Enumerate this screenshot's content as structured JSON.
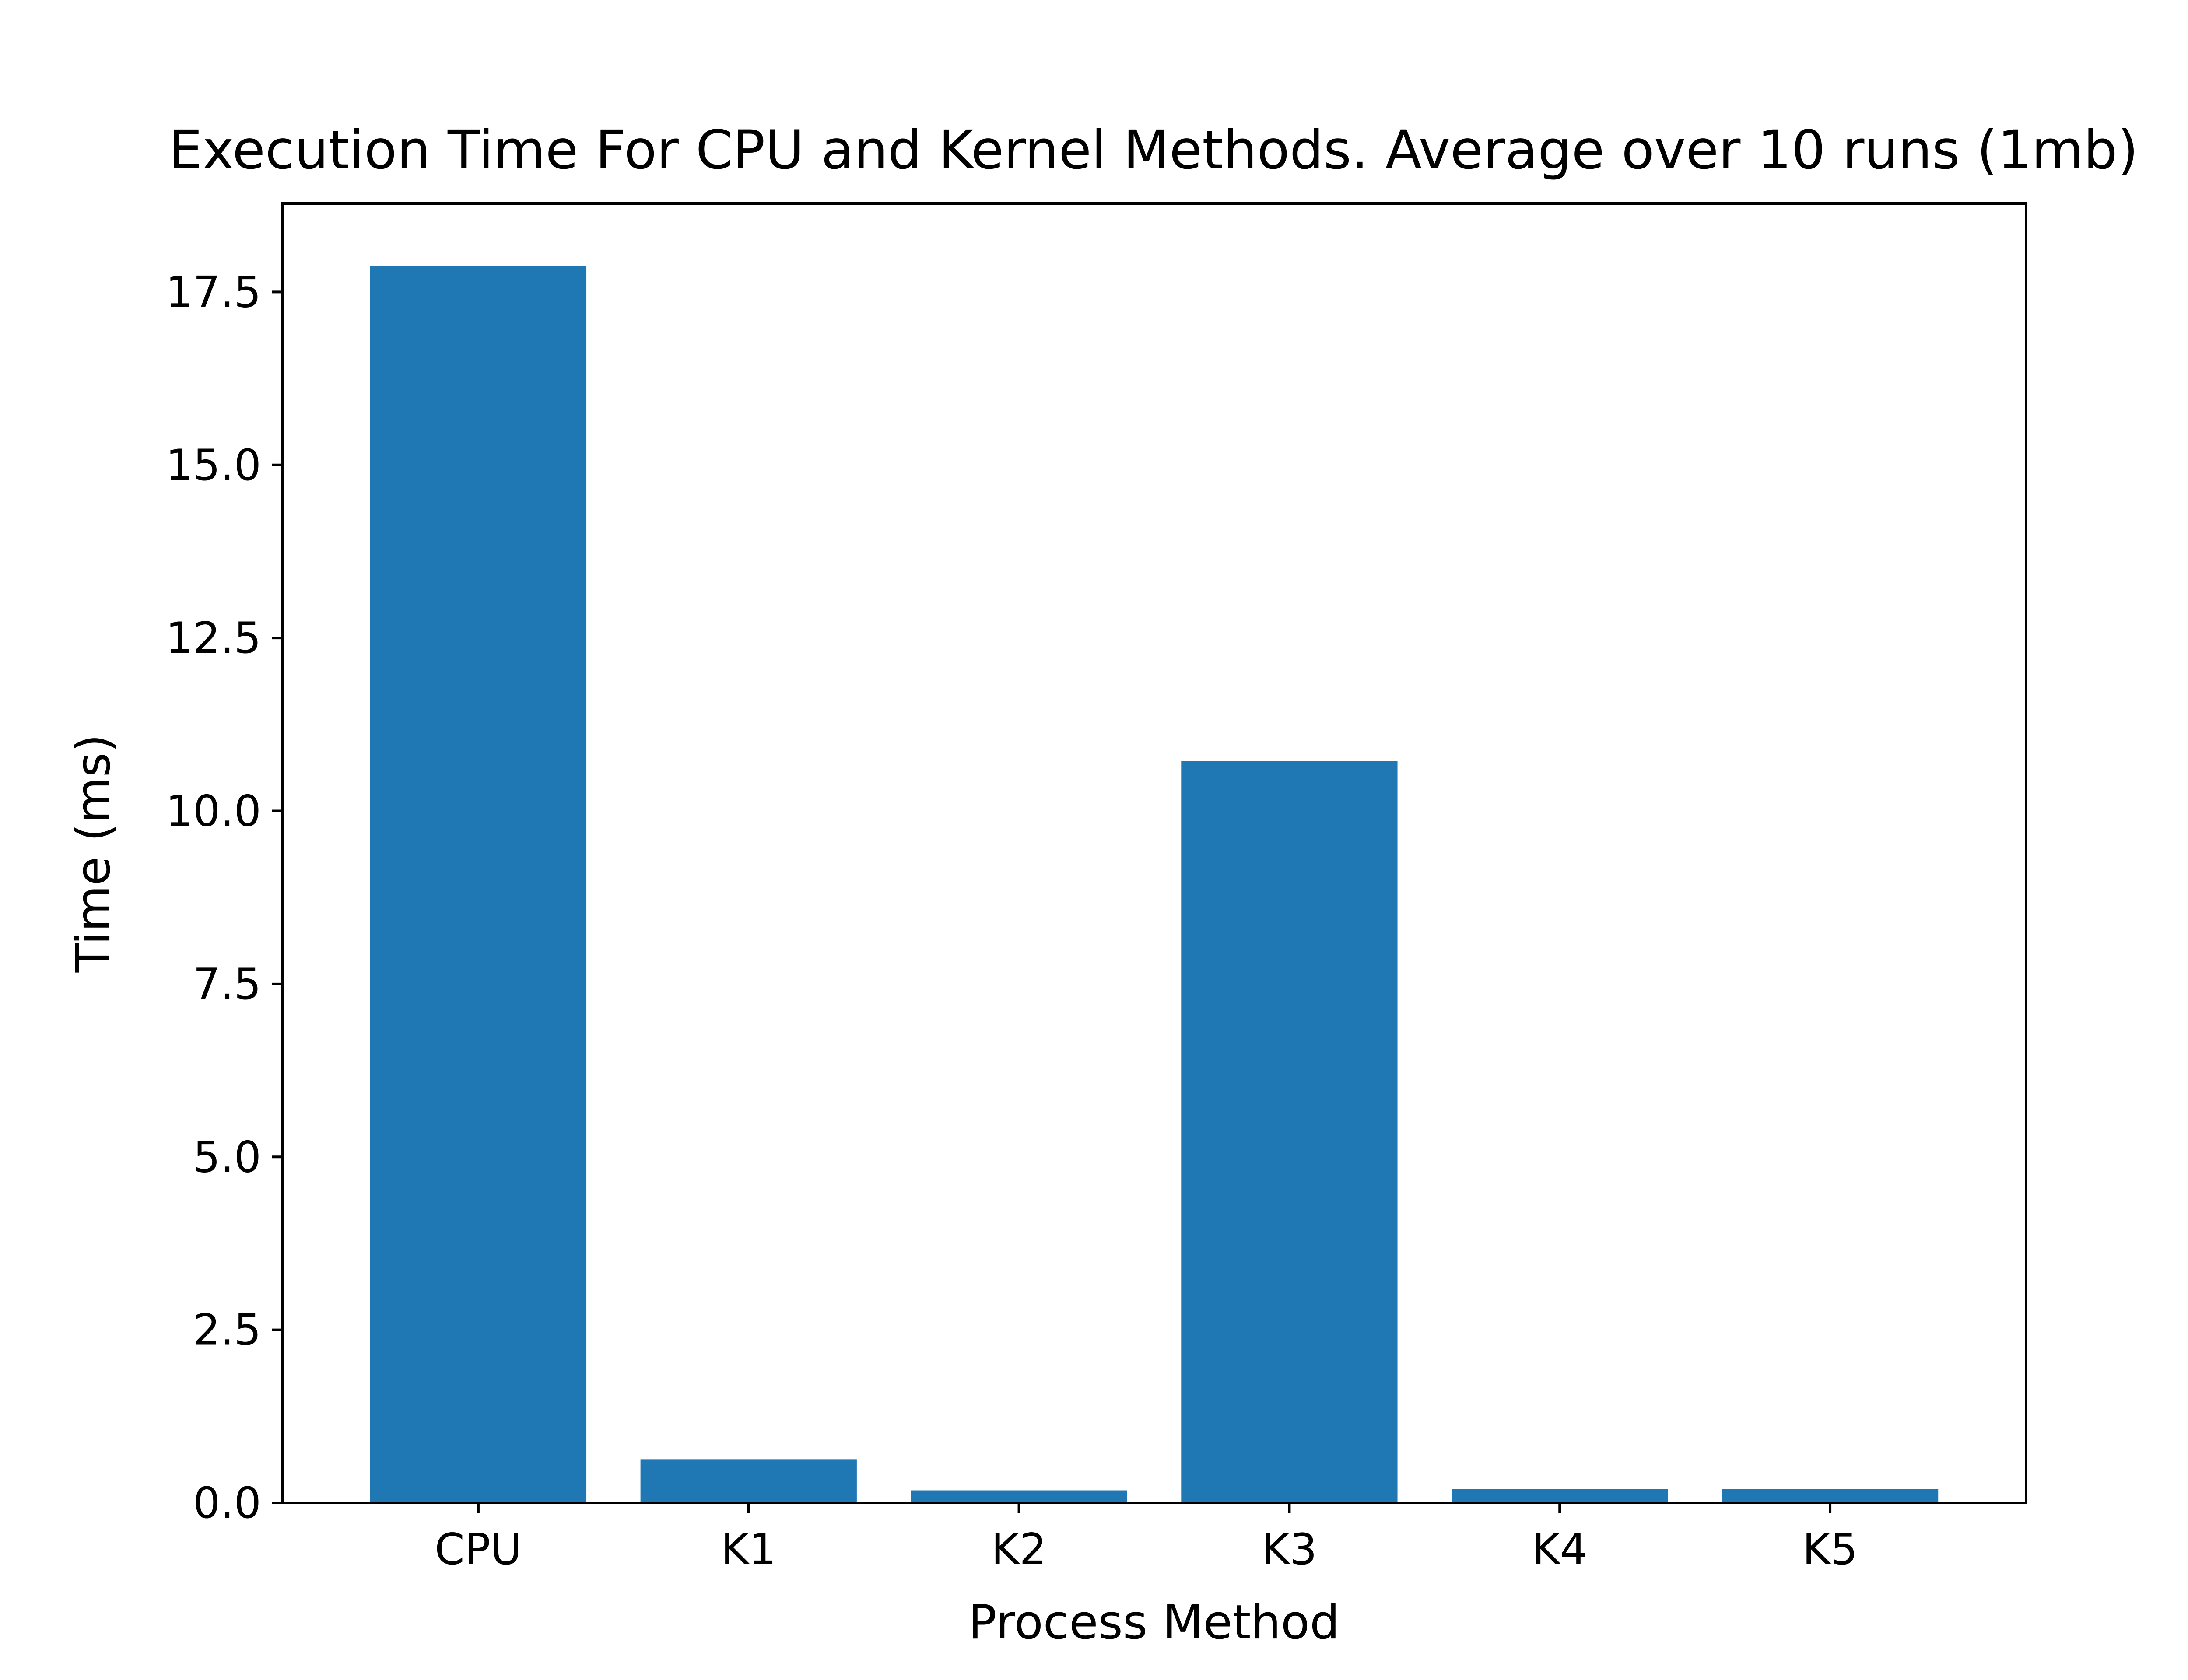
{
  "chart_data": {
    "type": "bar",
    "title": "Execution Time For CPU and Kernel Methods. Average over 10 runs (1mb)",
    "xlabel": "Process Method",
    "ylabel": "Time (ms)",
    "categories": [
      "CPU",
      "K1",
      "K2",
      "K3",
      "K4",
      "K5"
    ],
    "values": [
      17.88,
      0.63,
      0.18,
      10.72,
      0.2,
      0.2
    ],
    "ylim": [
      0,
      18.78
    ],
    "yticks": [
      0.0,
      2.5,
      5.0,
      7.5,
      10.0,
      12.5,
      15.0,
      17.5
    ],
    "ytick_labels": [
      "0.0",
      "2.5",
      "5.0",
      "7.5",
      "10.0",
      "12.5",
      "15.0",
      "17.5"
    ],
    "bar_color": "#1f77b4",
    "grid": false,
    "legend": null
  }
}
